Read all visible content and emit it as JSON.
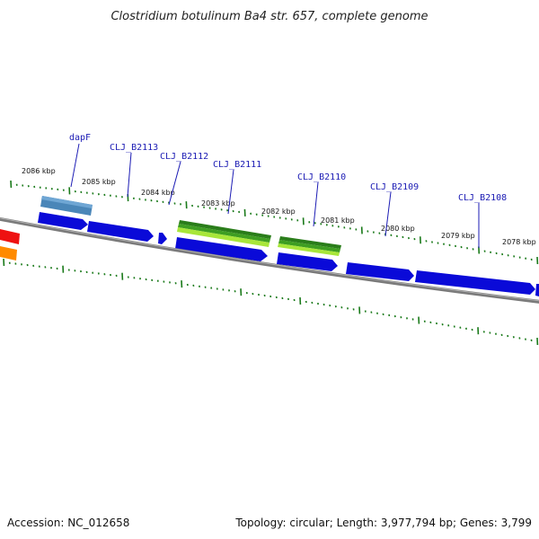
{
  "title": "Clostridium botulinum Ba4 str. 657, complete genome",
  "footer": {
    "accession": "Accession: NC_012658",
    "summary": "Topology: circular; Length: 3,977,794 bp; Genes: 3,799"
  },
  "colors": {
    "backbone": "#7a7a7a",
    "forward_feature": "#0a0ad8",
    "tick": "#1a7a1a",
    "label": "#1b1bb4",
    "red_feature": "#ee1111",
    "orange_feature": "#ff8a00",
    "steel_feature": "#4a86b8",
    "green_feature": "#2a8a1a",
    "lightgreen_feature": "#a8e63a"
  },
  "kbp_labels": [
    "2086 kbp",
    "2085 kbp",
    "2084 kbp",
    "2083 kbp",
    "2082 kbp",
    "2081 kbp",
    "2080 kbp",
    "2079 kbp",
    "2078 kbp"
  ],
  "gene_labels": [
    "dapF",
    "CLJ_B2113",
    "CLJ_B2112",
    "CLJ_B2111",
    "CLJ_B2110",
    "CLJ_B2109",
    "CLJ_B2108"
  ]
}
